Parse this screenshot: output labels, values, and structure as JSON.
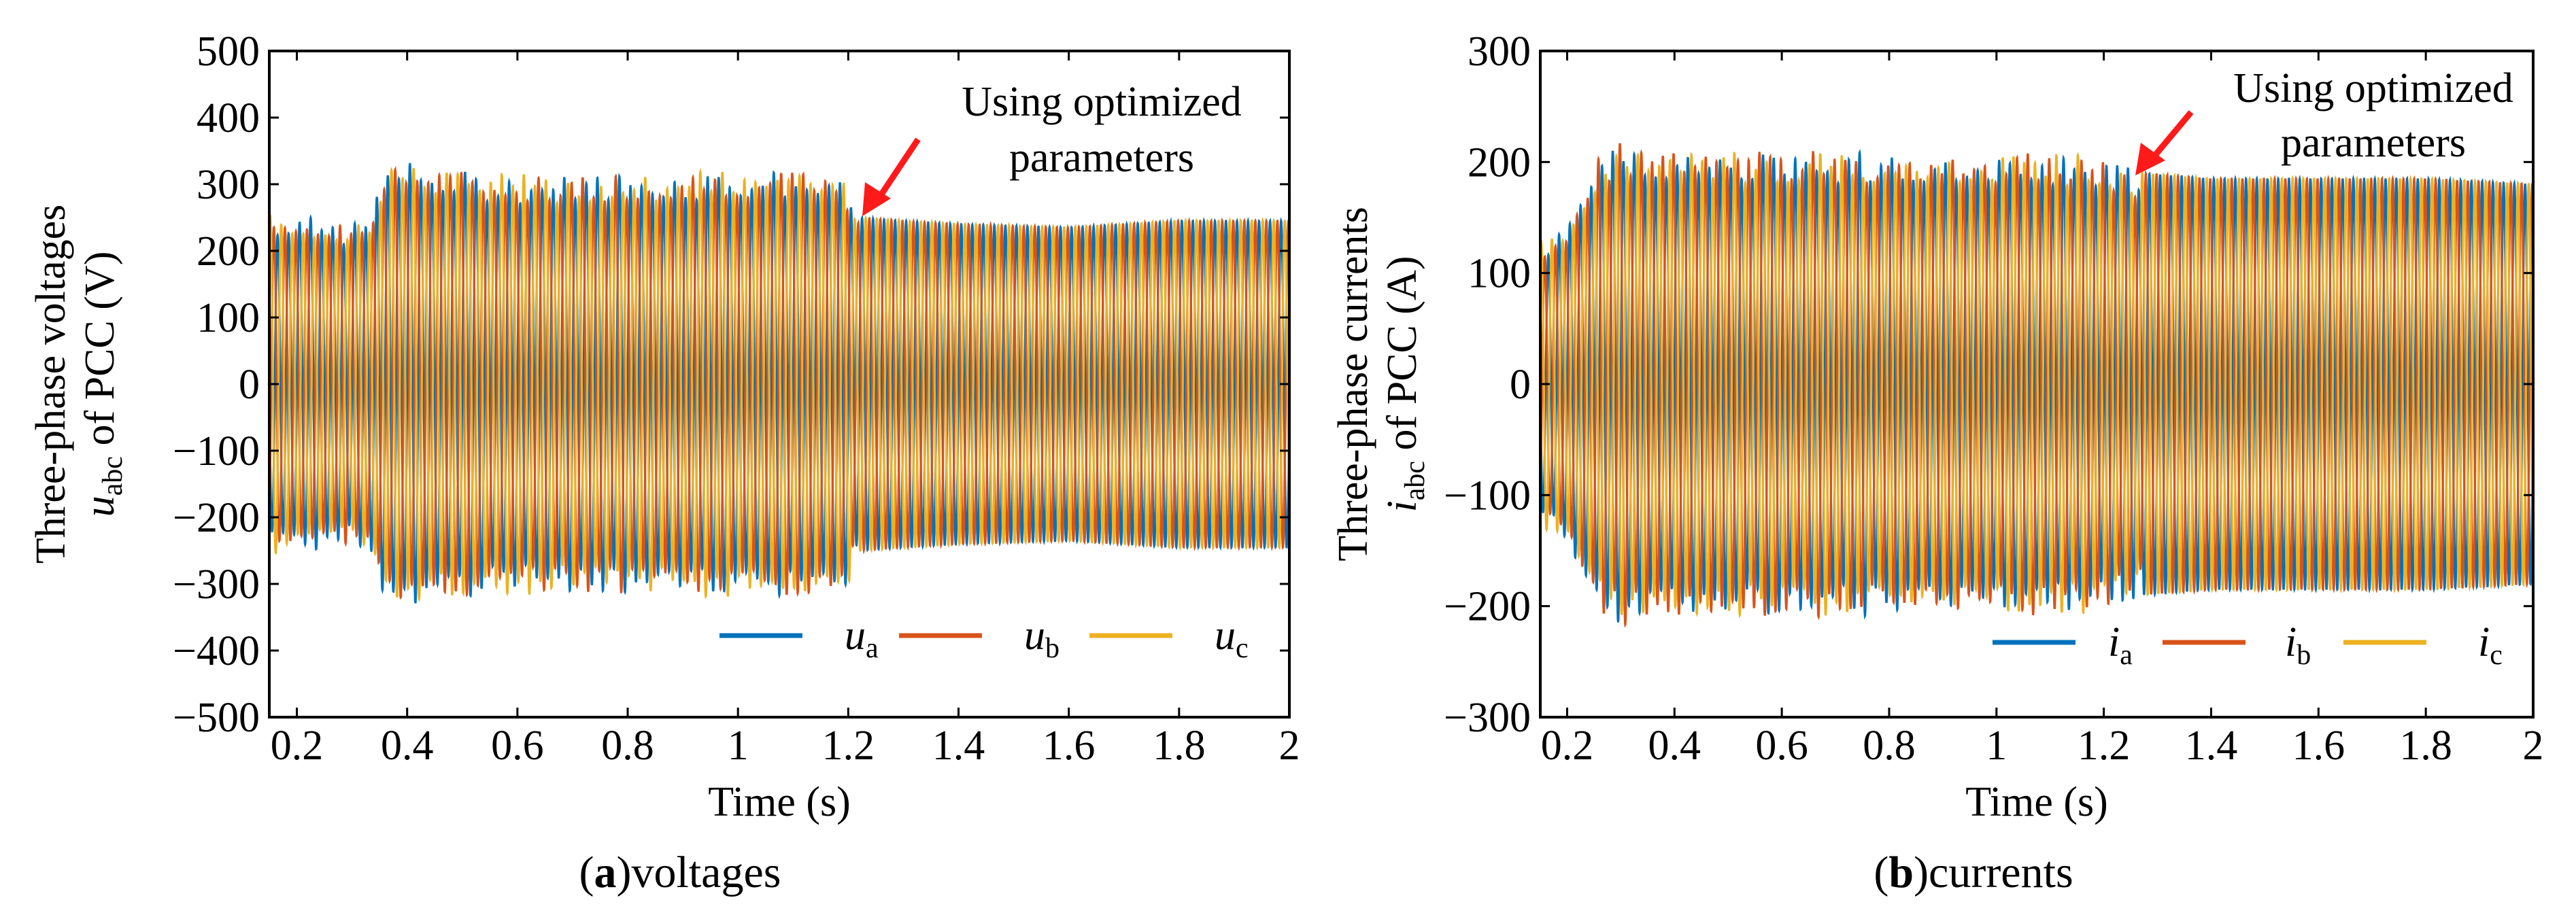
{
  "chart_data": [
    {
      "type": "line",
      "id": "a",
      "caption_letter": "a",
      "caption_text": ")voltages",
      "caption_open": "(",
      "ylabel_line1": "Three-phase voltages",
      "ylabel_var": "u",
      "ylabel_sub": "abc",
      "ylabel_rest": " of PCC (V)",
      "xlabel": "Time (s)",
      "xlim": [
        0.15,
        2.0
      ],
      "ylim": [
        -500,
        500
      ],
      "xticks": [
        0.2,
        0.4,
        0.6,
        0.8,
        1,
        1.2,
        1.4,
        1.6,
        1.8,
        2
      ],
      "xtick_labels": [
        "0.2",
        "0.4",
        "0.6",
        "0.8",
        "1",
        "1.2",
        "1.4",
        "1.6",
        "1.8",
        "2"
      ],
      "yticks": [
        -500,
        -400,
        -300,
        -200,
        -100,
        0,
        100,
        200,
        300,
        400,
        500
      ],
      "ytick_labels": [
        "−500",
        "−400",
        "−300",
        "−200",
        "−100",
        "0",
        "100",
        "200",
        "300",
        "400",
        "500"
      ],
      "annotation": {
        "line1": "Using optimized",
        "line2": "parameters",
        "x": 1.22,
        "y": 230
      },
      "switch_time": 1.22,
      "envelope": {
        "t": [
          0.15,
          0.2,
          0.28,
          0.33,
          0.36,
          0.42,
          0.5,
          0.6,
          0.7,
          0.8,
          0.9,
          1.0,
          1.1,
          1.2,
          1.22,
          1.3,
          1.4,
          1.6,
          1.8,
          2.0
        ],
        "amp": [
          255,
          255,
          240,
          250,
          340,
          330,
          320,
          315,
          315,
          320,
          320,
          325,
          320,
          300,
          250,
          245,
          240,
          235,
          245,
          245
        ]
      },
      "series": [
        {
          "name": "u_a",
          "label_main": "u",
          "label_sub": "a",
          "color": "#0072BD"
        },
        {
          "name": "u_b",
          "label_main": "u",
          "label_sub": "b",
          "color": "#D95319"
        },
        {
          "name": "u_c",
          "label_main": "u",
          "label_sub": "c",
          "color": "#EDB120"
        }
      ]
    },
    {
      "type": "line",
      "id": "b",
      "caption_letter": "b",
      "caption_text": ")currents",
      "caption_open": "(",
      "ylabel_line1": "Three-phase currents",
      "ylabel_var": "i",
      "ylabel_sub": "abc",
      "ylabel_rest": " of PCC (A)",
      "xlabel": "Time (s)",
      "xlim": [
        0.15,
        2.0
      ],
      "ylim": [
        -300,
        300
      ],
      "xticks": [
        0.2,
        0.4,
        0.6,
        0.8,
        1,
        1.2,
        1.4,
        1.6,
        1.8,
        2
      ],
      "xtick_labels": [
        "0.2",
        "0.4",
        "0.6",
        "0.8",
        "1",
        "1.2",
        "1.4",
        "1.6",
        "1.8",
        "2"
      ],
      "yticks": [
        -300,
        -200,
        -100,
        0,
        100,
        200,
        300
      ],
      "ytick_labels": [
        "−300",
        "−200",
        "−100",
        "0",
        "100",
        "200",
        "300"
      ],
      "annotation": {
        "line1": "Using optimized",
        "line2": "parameters",
        "x": 1.27,
        "y": 195
      },
      "switch_time": 1.27,
      "envelope": {
        "t": [
          0.15,
          0.2,
          0.25,
          0.3,
          0.35,
          0.4,
          0.6,
          0.8,
          1.0,
          1.2,
          1.27,
          1.4,
          1.6,
          1.8,
          2.0
        ],
        "amp": [
          130,
          140,
          200,
          220,
          215,
          210,
          210,
          210,
          210,
          205,
          190,
          185,
          185,
          185,
          180
        ]
      },
      "series": [
        {
          "name": "i_a",
          "label_main": "i",
          "label_sub": "a",
          "color": "#0072BD"
        },
        {
          "name": "i_b",
          "label_main": "i",
          "label_sub": "b",
          "color": "#D95319"
        },
        {
          "name": "i_c",
          "label_main": "i",
          "label_sub": "c",
          "color": "#EDB120"
        }
      ]
    }
  ]
}
